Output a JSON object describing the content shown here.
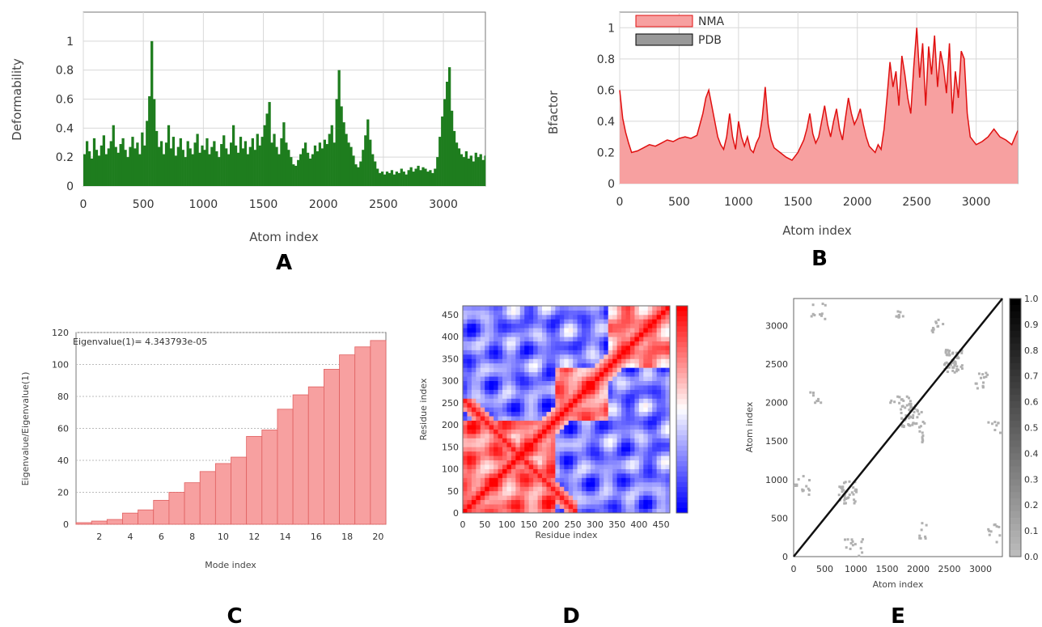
{
  "chart_data": [
    {
      "panel": "A",
      "type": "bar",
      "xlabel": "Atom index",
      "ylabel": "Deformability",
      "xlim": [
        0,
        3350
      ],
      "ylim": [
        0,
        1.2
      ],
      "xticks": [
        0,
        500,
        1000,
        1500,
        2000,
        2500,
        3000
      ],
      "yticks": [
        0,
        0.2,
        0.4,
        0.6,
        0.8,
        1
      ],
      "grid": true,
      "color": "#1e7d1e",
      "x": [
        0,
        20,
        40,
        60,
        80,
        100,
        120,
        140,
        160,
        180,
        200,
        220,
        240,
        260,
        280,
        300,
        320,
        340,
        360,
        380,
        400,
        420,
        440,
        460,
        480,
        500,
        520,
        540,
        560,
        580,
        600,
        620,
        640,
        660,
        680,
        700,
        720,
        740,
        760,
        780,
        800,
        820,
        840,
        860,
        880,
        900,
        920,
        940,
        960,
        980,
        1000,
        1020,
        1040,
        1060,
        1080,
        1100,
        1120,
        1140,
        1160,
        1180,
        1200,
        1220,
        1240,
        1260,
        1280,
        1300,
        1320,
        1340,
        1360,
        1380,
        1400,
        1420,
        1440,
        1460,
        1480,
        1500,
        1520,
        1540,
        1560,
        1580,
        1600,
        1620,
        1640,
        1660,
        1680,
        1700,
        1720,
        1740,
        1760,
        1780,
        1800,
        1820,
        1840,
        1860,
        1880,
        1900,
        1920,
        1940,
        1960,
        1980,
        2000,
        2020,
        2040,
        2060,
        2080,
        2100,
        2120,
        2140,
        2160,
        2180,
        2200,
        2220,
        2240,
        2260,
        2280,
        2300,
        2320,
        2340,
        2360,
        2380,
        2400,
        2420,
        2440,
        2460,
        2480,
        2500,
        2520,
        2540,
        2560,
        2580,
        2600,
        2620,
        2640,
        2660,
        2680,
        2700,
        2720,
        2740,
        2760,
        2780,
        2800,
        2820,
        2840,
        2860,
        2880,
        2900,
        2920,
        2940,
        2960,
        2980,
        3000,
        3020,
        3040,
        3060,
        3080,
        3100,
        3120,
        3140,
        3160,
        3180,
        3200,
        3220,
        3240,
        3260,
        3280,
        3300,
        3320,
        3340
      ],
      "values": [
        0.22,
        0.31,
        0.24,
        0.19,
        0.33,
        0.25,
        0.21,
        0.28,
        0.35,
        0.22,
        0.26,
        0.31,
        0.42,
        0.27,
        0.23,
        0.29,
        0.33,
        0.25,
        0.2,
        0.27,
        0.34,
        0.26,
        0.3,
        0.22,
        0.37,
        0.28,
        0.45,
        0.62,
        1.0,
        0.6,
        0.38,
        0.27,
        0.31,
        0.22,
        0.3,
        0.42,
        0.26,
        0.34,
        0.21,
        0.27,
        0.33,
        0.25,
        0.2,
        0.31,
        0.26,
        0.22,
        0.3,
        0.36,
        0.23,
        0.28,
        0.25,
        0.33,
        0.22,
        0.27,
        0.31,
        0.24,
        0.2,
        0.29,
        0.35,
        0.26,
        0.22,
        0.3,
        0.42,
        0.28,
        0.23,
        0.34,
        0.26,
        0.31,
        0.22,
        0.27,
        0.33,
        0.25,
        0.36,
        0.28,
        0.34,
        0.42,
        0.5,
        0.58,
        0.3,
        0.36,
        0.27,
        0.22,
        0.33,
        0.44,
        0.3,
        0.25,
        0.2,
        0.15,
        0.14,
        0.18,
        0.22,
        0.26,
        0.3,
        0.23,
        0.19,
        0.22,
        0.28,
        0.24,
        0.3,
        0.26,
        0.32,
        0.29,
        0.36,
        0.42,
        0.3,
        0.6,
        0.8,
        0.55,
        0.44,
        0.36,
        0.3,
        0.27,
        0.21,
        0.15,
        0.13,
        0.17,
        0.25,
        0.35,
        0.46,
        0.32,
        0.22,
        0.17,
        0.12,
        0.09,
        0.1,
        0.08,
        0.1,
        0.09,
        0.11,
        0.08,
        0.1,
        0.09,
        0.12,
        0.1,
        0.08,
        0.11,
        0.13,
        0.1,
        0.12,
        0.14,
        0.11,
        0.13,
        0.12,
        0.1,
        0.11,
        0.09,
        0.12,
        0.2,
        0.34,
        0.48,
        0.6,
        0.72,
        0.82,
        0.52,
        0.38,
        0.3,
        0.26,
        0.22,
        0.2,
        0.24,
        0.19,
        0.21,
        0.17,
        0.23,
        0.2,
        0.22,
        0.18,
        0.21
      ]
    },
    {
      "panel": "B",
      "type": "area",
      "xlabel": "Atom index",
      "ylabel": "Bfactor",
      "xlim": [
        0,
        3350
      ],
      "ylim": [
        0,
        1.1
      ],
      "xticks": [
        0,
        500,
        1000,
        1500,
        2000,
        2500,
        3000
      ],
      "yticks": [
        0,
        0.2,
        0.4,
        0.6,
        0.8,
        1
      ],
      "grid": true,
      "legend_position": "top-left",
      "series": [
        {
          "name": "NMA",
          "fill": "#f7a0a0",
          "line": "#e01010",
          "x": [
            0,
            25,
            50,
            75,
            100,
            150,
            200,
            250,
            300,
            350,
            400,
            450,
            500,
            550,
            600,
            650,
            700,
            725,
            750,
            775,
            800,
            825,
            850,
            875,
            900,
            925,
            950,
            975,
            1000,
            1025,
            1050,
            1075,
            1100,
            1125,
            1150,
            1175,
            1200,
            1225,
            1250,
            1275,
            1300,
            1350,
            1400,
            1450,
            1500,
            1550,
            1575,
            1600,
            1625,
            1650,
            1675,
            1700,
            1725,
            1750,
            1775,
            1800,
            1825,
            1850,
            1875,
            1900,
            1925,
            1950,
            1975,
            2000,
            2025,
            2050,
            2075,
            2100,
            2125,
            2150,
            2175,
            2200,
            2225,
            2250,
            2275,
            2300,
            2325,
            2350,
            2375,
            2400,
            2425,
            2450,
            2475,
            2500,
            2525,
            2550,
            2575,
            2600,
            2625,
            2650,
            2675,
            2700,
            2725,
            2750,
            2775,
            2800,
            2825,
            2850,
            2875,
            2900,
            2925,
            2950,
            3000,
            3050,
            3100,
            3150,
            3200,
            3250,
            3300,
            3350
          ],
          "values": [
            0.6,
            0.42,
            0.33,
            0.26,
            0.2,
            0.21,
            0.23,
            0.25,
            0.24,
            0.26,
            0.28,
            0.27,
            0.29,
            0.3,
            0.29,
            0.31,
            0.45,
            0.55,
            0.6,
            0.5,
            0.4,
            0.3,
            0.25,
            0.22,
            0.3,
            0.45,
            0.3,
            0.22,
            0.4,
            0.3,
            0.24,
            0.3,
            0.22,
            0.2,
            0.26,
            0.3,
            0.42,
            0.62,
            0.38,
            0.28,
            0.23,
            0.2,
            0.17,
            0.15,
            0.2,
            0.28,
            0.35,
            0.45,
            0.32,
            0.26,
            0.3,
            0.4,
            0.5,
            0.38,
            0.3,
            0.4,
            0.48,
            0.35,
            0.28,
            0.42,
            0.55,
            0.45,
            0.38,
            0.42,
            0.48,
            0.38,
            0.3,
            0.24,
            0.22,
            0.2,
            0.25,
            0.22,
            0.35,
            0.55,
            0.78,
            0.62,
            0.72,
            0.5,
            0.82,
            0.7,
            0.55,
            0.45,
            0.75,
            1.0,
            0.68,
            0.9,
            0.5,
            0.88,
            0.7,
            0.95,
            0.62,
            0.85,
            0.75,
            0.58,
            0.9,
            0.45,
            0.72,
            0.55,
            0.85,
            0.8,
            0.45,
            0.3,
            0.25,
            0.27,
            0.3,
            0.35,
            0.3,
            0.28,
            0.25,
            0.34
          ]
        },
        {
          "name": "PDB",
          "fill": "#999999",
          "line": "#000000",
          "x": [],
          "values": []
        }
      ]
    },
    {
      "panel": "C",
      "type": "bar",
      "xlabel": "Mode index",
      "ylabel": "Eigenvalue/Eigenvalue(1)",
      "annotation": "Eigenvalue(1)= 4.343793e-05",
      "xlim": [
        0.5,
        20.5
      ],
      "ylim": [
        0,
        120
      ],
      "xticks": [
        2,
        4,
        6,
        8,
        10,
        12,
        14,
        16,
        18,
        20
      ],
      "yticks": [
        0,
        20,
        40,
        60,
        80,
        100,
        120
      ],
      "grid": true,
      "color": "#f7a0a0",
      "categories": [
        1,
        2,
        3,
        4,
        5,
        6,
        7,
        8,
        9,
        10,
        11,
        12,
        13,
        14,
        15,
        16,
        17,
        18,
        19,
        20
      ],
      "values": [
        1,
        2,
        3,
        7,
        9,
        15,
        20,
        26,
        33,
        38,
        42,
        55,
        59,
        72,
        81,
        86,
        97,
        106,
        111,
        115
      ]
    },
    {
      "panel": "D",
      "type": "heatmap",
      "xlabel": "Residue index",
      "ylabel": "Residue index",
      "xlim": [
        0,
        470
      ],
      "ylim": [
        0,
        470
      ],
      "xticks": [
        0,
        50,
        100,
        150,
        200,
        250,
        300,
        350,
        400,
        450
      ],
      "yticks": [
        0,
        50,
        100,
        150,
        200,
        250,
        300,
        350,
        400,
        450
      ],
      "colormap": [
        "#0000ff",
        "#ffffff",
        "#ff0000"
      ],
      "domains": [
        [
          0,
          210
        ],
        [
          210,
          330
        ],
        [
          330,
          470
        ]
      ]
    },
    {
      "panel": "E",
      "type": "heatmap",
      "xlabel": "Atom index",
      "ylabel": "Atom index",
      "xlim": [
        0,
        3350
      ],
      "ylim": [
        0,
        3350
      ],
      "xticks": [
        0,
        500,
        1000,
        1500,
        2000,
        2500,
        3000
      ],
      "yticks": [
        0,
        500,
        1000,
        1500,
        2000,
        2500,
        3000
      ],
      "colorbar_ticks": [
        "1.0",
        "0.9",
        "0.8",
        "0.7",
        "0.6",
        "0.5",
        "0.4",
        "0.3",
        "0.2",
        "0.1",
        "0.0"
      ],
      "colormap": [
        "#bbbbbb",
        "#000000"
      ]
    }
  ],
  "panel_labels": [
    "A",
    "B",
    "C",
    "D",
    "E"
  ]
}
